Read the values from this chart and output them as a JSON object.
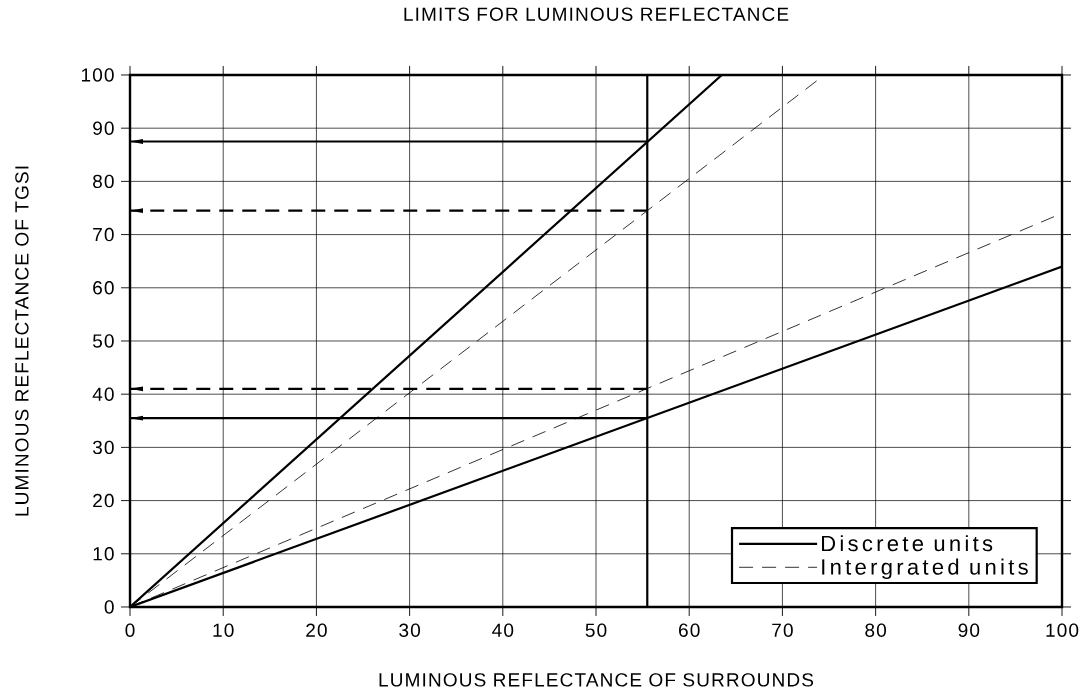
{
  "chart_data": {
    "type": "line",
    "title": "LIMITS FOR LUMINOUS REFLECTANCE",
    "xlabel": "LUMINOUS REFLECTANCE OF SURROUNDS",
    "ylabel": "LUMINOUS REFLECTANCE OF TGSI",
    "xlim": [
      0,
      100
    ],
    "ylim": [
      0,
      100
    ],
    "xticks": [
      0,
      10,
      20,
      30,
      40,
      50,
      60,
      70,
      80,
      90,
      100
    ],
    "yticks": [
      0,
      10,
      20,
      30,
      40,
      50,
      60,
      70,
      80,
      90,
      100
    ],
    "grid": true,
    "legend": "bottom right",
    "series": [
      {
        "name": "Discrete units",
        "color": "#000000",
        "line_style": "solid",
        "x": [
          0,
          63.5
        ],
        "values": [
          0,
          100
        ]
      },
      {
        "name": "Intergrated units",
        "color": "#000000",
        "line_style": "dashed",
        "x": [
          0,
          74.5
        ],
        "values": [
          0,
          100
        ]
      },
      {
        "color": "#000000",
        "line_style": "solid",
        "x": [
          0,
          100
        ],
        "values": [
          0,
          64
        ]
      },
      {
        "color": "#000000",
        "line_style": "dashed",
        "x": [
          0,
          100
        ],
        "values": [
          0,
          74
        ]
      },
      {
        "color": "#000000",
        "line_style": "solid",
        "x": [
          55.5,
          0
        ],
        "values": [
          87.5,
          87.5
        ]
      },
      {
        "color": "#000000",
        "line_style": "dashed",
        "x": [
          55.5,
          0
        ],
        "values": [
          74.5,
          74.5
        ]
      },
      {
        "color": "#000000",
        "line_style": "dashed",
        "x": [
          55.5,
          0
        ],
        "values": [
          41,
          41
        ]
      },
      {
        "color": "#000000",
        "line_style": "solid",
        "x": [
          55.5,
          0
        ],
        "values": [
          35.5,
          35.5
        ]
      }
    ],
    "ref_lines": [
      {
        "axis": "x",
        "value": 55.5,
        "color": "#000000",
        "line_style": "solid"
      }
    ]
  }
}
